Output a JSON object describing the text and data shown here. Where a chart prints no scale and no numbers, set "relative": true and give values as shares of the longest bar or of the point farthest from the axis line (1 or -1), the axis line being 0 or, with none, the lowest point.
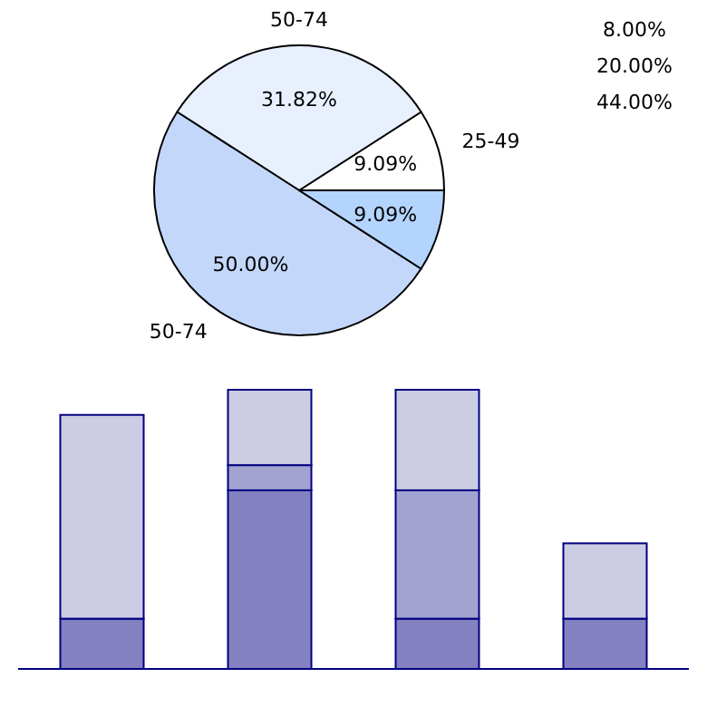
{
  "chart_data": [
    {
      "type": "pie",
      "categories": [
        "25-49",
        "50-74",
        "50-74",
        null
      ],
      "values": [
        9.09,
        31.82,
        50.0,
        9.09
      ],
      "colors": [
        "#ffffff",
        "#e8f0fe",
        "#c3d7fb",
        "#b3d4fd"
      ],
      "value_labels": [
        "9.09%",
        "31.82%",
        "50.00%",
        "9.09%"
      ],
      "annotations": [
        "8.00%",
        "20.00%",
        "44.00%"
      ]
    },
    {
      "type": "bar",
      "stacked": true,
      "relative": true,
      "categories": [
        null,
        null,
        null,
        null
      ],
      "series": [
        {
          "color": "#8481c1",
          "values": [
            0.18,
            0.64,
            0.18,
            0.18
          ]
        },
        {
          "color": "#a3a3d2",
          "values": [
            null,
            0.09,
            0.46,
            null
          ]
        },
        {
          "color": "#cccce4",
          "values": [
            0.73,
            0.27,
            0.36,
            0.27
          ]
        }
      ]
    }
  ]
}
